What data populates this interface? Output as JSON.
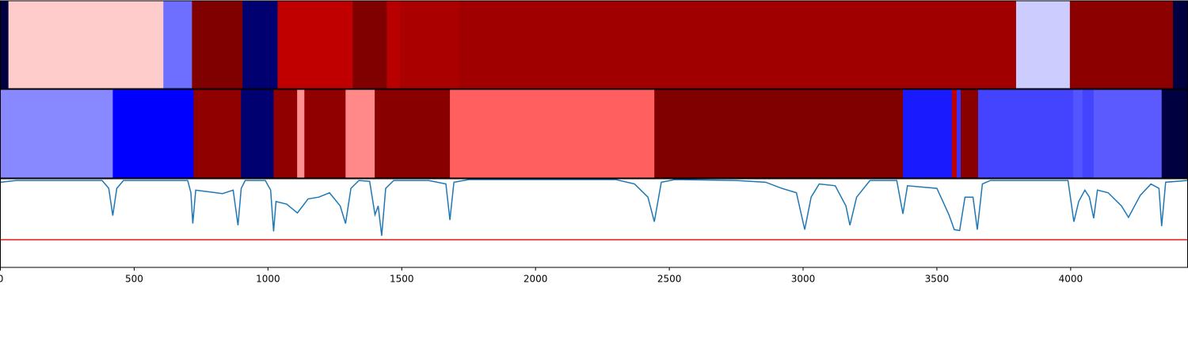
{
  "chart_data": [
    {
      "type": "heatmap",
      "xlim": [
        0,
        4437
      ],
      "edges": [
        0,
        30,
        609,
        716,
        905,
        1036,
        1317,
        1444,
        1494,
        1716,
        3796,
        3997,
        4382,
        4437
      ],
      "colors": [
        "#000040",
        "#ffcccc",
        "#6f6fff",
        "#800000",
        "#000070",
        "#c00000",
        "#800000",
        "#b80000",
        "#aa0000",
        "#a00000",
        "#ccccff",
        "#8c0000",
        "#000040"
      ]
    },
    {
      "type": "heatmap",
      "xlim": [
        0,
        4437
      ],
      "edges": [
        0,
        420,
        722,
        899,
        1021,
        1109,
        1136,
        1290,
        1399,
        1680,
        2444,
        3373,
        3556,
        3574,
        3589,
        3654,
        4009,
        4044,
        4086,
        4340,
        4437
      ],
      "colors": [
        "#8888ff",
        "#0000ff",
        "#900000",
        "#000070",
        "#900000",
        "#ff9090",
        "#900000",
        "#ff8888",
        "#880000",
        "#ff5f5f",
        "#800000",
        "#1a1aff",
        "#c00000",
        "#3333ff",
        "#880000",
        "#4444ff",
        "#5555ff",
        "#4444ff",
        "#5a5aff",
        "#000040"
      ]
    },
    {
      "type": "line",
      "xlim": [
        0,
        4437
      ],
      "ylim": [
        0,
        1
      ],
      "xticks": [
        0,
        500,
        1000,
        1500,
        2000,
        2500,
        3000,
        3500,
        4000
      ],
      "hline": 0.315,
      "hline_color": "#e41a1c",
      "series": [
        {
          "color": "#1f77b4",
          "x": [
            0,
            60,
            380,
            405,
            420,
            435,
            460,
            700,
            712,
            719,
            730,
            780,
            830,
            870,
            888,
            900,
            915,
            990,
            1010,
            1021,
            1030,
            1070,
            1110,
            1150,
            1190,
            1230,
            1270,
            1290,
            1310,
            1340,
            1380,
            1400,
            1412,
            1425,
            1440,
            1470,
            1600,
            1665,
            1680,
            1695,
            1750,
            2300,
            2370,
            2420,
            2444,
            2470,
            2520,
            2750,
            2860,
            2920,
            2975,
            3006,
            3030,
            3060,
            3120,
            3160,
            3175,
            3200,
            3250,
            3350,
            3373,
            3390,
            3500,
            3545,
            3565,
            3585,
            3605,
            3635,
            3651,
            3670,
            3700,
            3990,
            4012,
            4030,
            4053,
            4070,
            4086,
            4100,
            4140,
            4190,
            4216,
            4260,
            4300,
            4330,
            4340,
            4355,
            4437
          ],
          "values": [
            0.97,
            0.99,
            0.99,
            0.9,
            0.59,
            0.9,
            0.99,
            0.99,
            0.85,
            0.5,
            0.88,
            0.86,
            0.84,
            0.88,
            0.48,
            0.9,
            0.99,
            0.99,
            0.88,
            0.41,
            0.75,
            0.72,
            0.62,
            0.78,
            0.8,
            0.85,
            0.7,
            0.5,
            0.9,
            0.99,
            0.98,
            0.6,
            0.7,
            0.36,
            0.9,
            0.99,
            0.99,
            0.95,
            0.54,
            0.97,
            1.0,
            1.0,
            0.95,
            0.8,
            0.52,
            0.97,
            1.0,
            0.99,
            0.97,
            0.9,
            0.85,
            0.43,
            0.8,
            0.95,
            0.93,
            0.7,
            0.48,
            0.8,
            0.99,
            0.99,
            0.61,
            0.93,
            0.9,
            0.6,
            0.43,
            0.42,
            0.8,
            0.8,
            0.43,
            0.95,
            0.99,
            0.99,
            0.52,
            0.75,
            0.88,
            0.8,
            0.56,
            0.88,
            0.85,
            0.7,
            0.57,
            0.82,
            0.95,
            0.9,
            0.47,
            0.97,
            0.99
          ]
        }
      ]
    }
  ]
}
